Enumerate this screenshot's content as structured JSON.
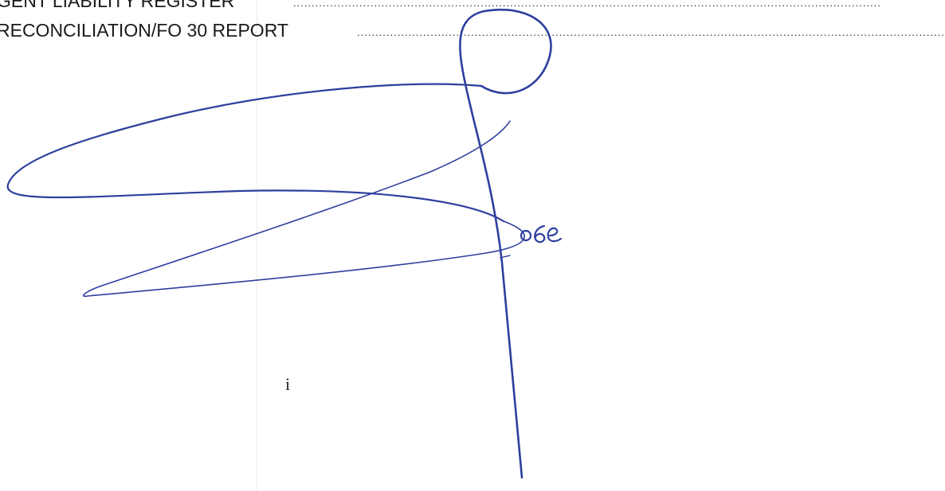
{
  "toc": {
    "entries": [
      {
        "title": "GENT LIABILITY REGISTER"
      },
      {
        "title": "RECONCILIATION/FO 30 REPORT"
      }
    ],
    "leader": "................................................................................................................................................................"
  },
  "footer": {
    "page_number": "i"
  },
  "signature": {
    "ink_color": "#2e3f9e",
    "suffix_text": "o6e"
  }
}
